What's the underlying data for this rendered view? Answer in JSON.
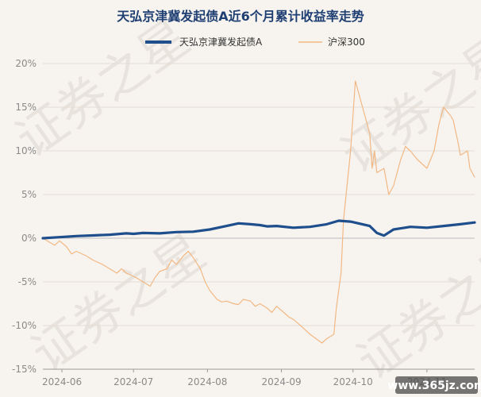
{
  "chart_data": {
    "type": "line",
    "title": "天弘京津冀发起债A近6个月累计收益率走势",
    "yunit": "%",
    "ylim": [
      -15,
      20
    ],
    "yticks": [
      20,
      15,
      10,
      5,
      0,
      -5,
      -10,
      -15
    ],
    "ytick_labels": [
      "20%",
      "15%",
      "10%",
      "5%",
      "0%",
      "-5%",
      "-10%",
      "-15%"
    ],
    "xlim": [
      "2024-05-24",
      "2024-11-21"
    ],
    "xticks": [
      "2024-06-01",
      "2024-07-01",
      "2024-08-01",
      "2024-09-01",
      "2024-10-01",
      "2024-11-01"
    ],
    "xtick_labels": [
      "2024-06",
      "2024-07",
      "2024-08",
      "2024-09",
      "2024-10",
      "2024-11"
    ],
    "grid": "horizontal",
    "legend_position": "top",
    "series": [
      {
        "name": "天弘京津冀发起债A",
        "color": "#1f4e8c",
        "points": [
          [
            "2024-05-24",
            0.0
          ],
          [
            "2024-05-31",
            0.12
          ],
          [
            "2024-06-07",
            0.25
          ],
          [
            "2024-06-14",
            0.32
          ],
          [
            "2024-06-21",
            0.4
          ],
          [
            "2024-06-28",
            0.55
          ],
          [
            "2024-07-01",
            0.5
          ],
          [
            "2024-07-05",
            0.6
          ],
          [
            "2024-07-12",
            0.55
          ],
          [
            "2024-07-19",
            0.7
          ],
          [
            "2024-07-26",
            0.75
          ],
          [
            "2024-08-02",
            1.0
          ],
          [
            "2024-08-09",
            1.4
          ],
          [
            "2024-08-14",
            1.7
          ],
          [
            "2024-08-19",
            1.6
          ],
          [
            "2024-08-23",
            1.5
          ],
          [
            "2024-08-26",
            1.35
          ],
          [
            "2024-08-30",
            1.4
          ],
          [
            "2024-09-06",
            1.2
          ],
          [
            "2024-09-13",
            1.3
          ],
          [
            "2024-09-20",
            1.6
          ],
          [
            "2024-09-25",
            2.0
          ],
          [
            "2024-09-30",
            1.9
          ],
          [
            "2024-10-08",
            1.4
          ],
          [
            "2024-10-11",
            0.6
          ],
          [
            "2024-10-14",
            0.3
          ],
          [
            "2024-10-18",
            1.0
          ],
          [
            "2024-10-25",
            1.3
          ],
          [
            "2024-11-01",
            1.2
          ],
          [
            "2024-11-08",
            1.4
          ],
          [
            "2024-11-15",
            1.6
          ],
          [
            "2024-11-21",
            1.8
          ]
        ]
      },
      {
        "name": "沪深300",
        "color": "#f2b884",
        "points": [
          [
            "2024-05-24",
            0.0
          ],
          [
            "2024-05-27",
            -0.5
          ],
          [
            "2024-05-29",
            -0.8
          ],
          [
            "2024-05-31",
            -0.3
          ],
          [
            "2024-06-03",
            -1.0
          ],
          [
            "2024-06-05",
            -1.8
          ],
          [
            "2024-06-07",
            -1.5
          ],
          [
            "2024-06-11",
            -2.0
          ],
          [
            "2024-06-14",
            -2.5
          ],
          [
            "2024-06-18",
            -3.0
          ],
          [
            "2024-06-21",
            -3.5
          ],
          [
            "2024-06-24",
            -4.0
          ],
          [
            "2024-06-26",
            -3.5
          ],
          [
            "2024-06-28",
            -4.0
          ],
          [
            "2024-07-02",
            -4.5
          ],
          [
            "2024-07-05",
            -5.0
          ],
          [
            "2024-07-08",
            -5.5
          ],
          [
            "2024-07-10",
            -4.5
          ],
          [
            "2024-07-12",
            -3.8
          ],
          [
            "2024-07-15",
            -3.5
          ],
          [
            "2024-07-17",
            -2.5
          ],
          [
            "2024-07-19",
            -3.0
          ],
          [
            "2024-07-22",
            -2.0
          ],
          [
            "2024-07-24",
            -1.5
          ],
          [
            "2024-07-26",
            -2.2
          ],
          [
            "2024-07-29",
            -3.5
          ],
          [
            "2024-07-31",
            -5.0
          ],
          [
            "2024-08-02",
            -6.0
          ],
          [
            "2024-08-05",
            -7.0
          ],
          [
            "2024-08-07",
            -7.3
          ],
          [
            "2024-08-09",
            -7.2
          ],
          [
            "2024-08-12",
            -7.5
          ],
          [
            "2024-08-14",
            -7.6
          ],
          [
            "2024-08-16",
            -7.0
          ],
          [
            "2024-08-19",
            -7.2
          ],
          [
            "2024-08-21",
            -7.8
          ],
          [
            "2024-08-23",
            -7.5
          ],
          [
            "2024-08-26",
            -8.0
          ],
          [
            "2024-08-28",
            -8.5
          ],
          [
            "2024-08-30",
            -7.8
          ],
          [
            "2024-09-02",
            -8.5
          ],
          [
            "2024-09-04",
            -9.0
          ],
          [
            "2024-09-06",
            -9.3
          ],
          [
            "2024-09-09",
            -10.0
          ],
          [
            "2024-09-11",
            -10.5
          ],
          [
            "2024-09-13",
            -11.0
          ],
          [
            "2024-09-18",
            -12.0
          ],
          [
            "2024-09-20",
            -11.5
          ],
          [
            "2024-09-23",
            -11.0
          ],
          [
            "2024-09-24",
            -8.0
          ],
          [
            "2024-09-26",
            -4.0
          ],
          [
            "2024-09-27",
            2.0
          ],
          [
            "2024-09-30",
            10.0
          ],
          [
            "2024-10-01",
            14.0
          ],
          [
            "2024-10-02",
            18.0
          ],
          [
            "2024-10-08",
            12.0
          ],
          [
            "2024-10-09",
            8.0
          ],
          [
            "2024-10-10",
            10.0
          ],
          [
            "2024-10-11",
            7.5
          ],
          [
            "2024-10-14",
            8.0
          ],
          [
            "2024-10-16",
            5.0
          ],
          [
            "2024-10-18",
            6.0
          ],
          [
            "2024-10-21",
            9.0
          ],
          [
            "2024-10-23",
            10.5
          ],
          [
            "2024-10-25",
            10.0
          ],
          [
            "2024-10-28",
            9.0
          ],
          [
            "2024-10-30",
            8.5
          ],
          [
            "2024-11-01",
            8.0
          ],
          [
            "2024-11-04",
            10.0
          ],
          [
            "2024-11-06",
            13.0
          ],
          [
            "2024-11-08",
            15.0
          ],
          [
            "2024-11-11",
            14.0
          ],
          [
            "2024-11-12",
            13.5
          ],
          [
            "2024-11-14",
            11.0
          ],
          [
            "2024-11-15",
            9.5
          ],
          [
            "2024-11-18",
            10.0
          ],
          [
            "2024-11-19",
            8.0
          ],
          [
            "2024-11-20",
            7.5
          ],
          [
            "2024-11-21",
            7.0
          ]
        ]
      }
    ]
  },
  "watermark": {
    "left": "证券之星",
    "right": "证券之星"
  },
  "site_label": "www.365jz.com"
}
